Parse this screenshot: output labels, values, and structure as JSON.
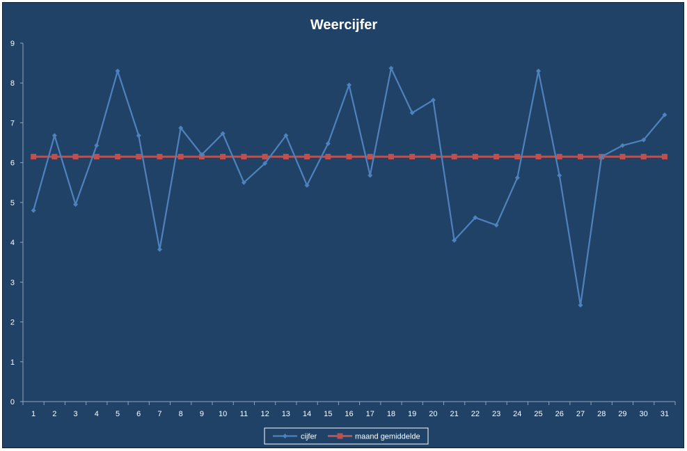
{
  "chart_data": {
    "type": "line",
    "title": "Weercijfer",
    "xlabel": "",
    "ylabel": "",
    "x": [
      "1",
      "2",
      "3",
      "4",
      "5",
      "6",
      "7",
      "8",
      "9",
      "10",
      "11",
      "12",
      "13",
      "14",
      "15",
      "16",
      "17",
      "18",
      "19",
      "20",
      "21",
      "22",
      "23",
      "24",
      "25",
      "26",
      "27",
      "28",
      "29",
      "30",
      "31"
    ],
    "ylim": [
      0,
      9
    ],
    "yticks": [
      "0",
      "1",
      "2",
      "3",
      "4",
      "5",
      "6",
      "7",
      "8",
      "9"
    ],
    "grid": false,
    "legend": "bottom",
    "series": [
      {
        "name": "cijfer",
        "color": "#4f81bd",
        "marker": "diamond",
        "values": [
          4.8,
          6.68,
          4.95,
          6.43,
          8.3,
          6.68,
          3.82,
          6.87,
          6.2,
          6.73,
          5.5,
          5.98,
          6.68,
          5.43,
          6.48,
          7.95,
          5.68,
          8.37,
          7.25,
          7.57,
          4.05,
          4.62,
          4.43,
          5.62,
          8.3,
          5.68,
          2.42,
          6.15,
          6.43,
          6.57,
          7.2
        ]
      },
      {
        "name": "maand gemiddelde",
        "color": "#c0504d",
        "marker": "square",
        "values": [
          6.15,
          6.15,
          6.15,
          6.15,
          6.15,
          6.15,
          6.15,
          6.15,
          6.15,
          6.15,
          6.15,
          6.15,
          6.15,
          6.15,
          6.15,
          6.15,
          6.15,
          6.15,
          6.15,
          6.15,
          6.15,
          6.15,
          6.15,
          6.15,
          6.15,
          6.15,
          6.15,
          6.15,
          6.15,
          6.15,
          6.15
        ]
      }
    ]
  }
}
